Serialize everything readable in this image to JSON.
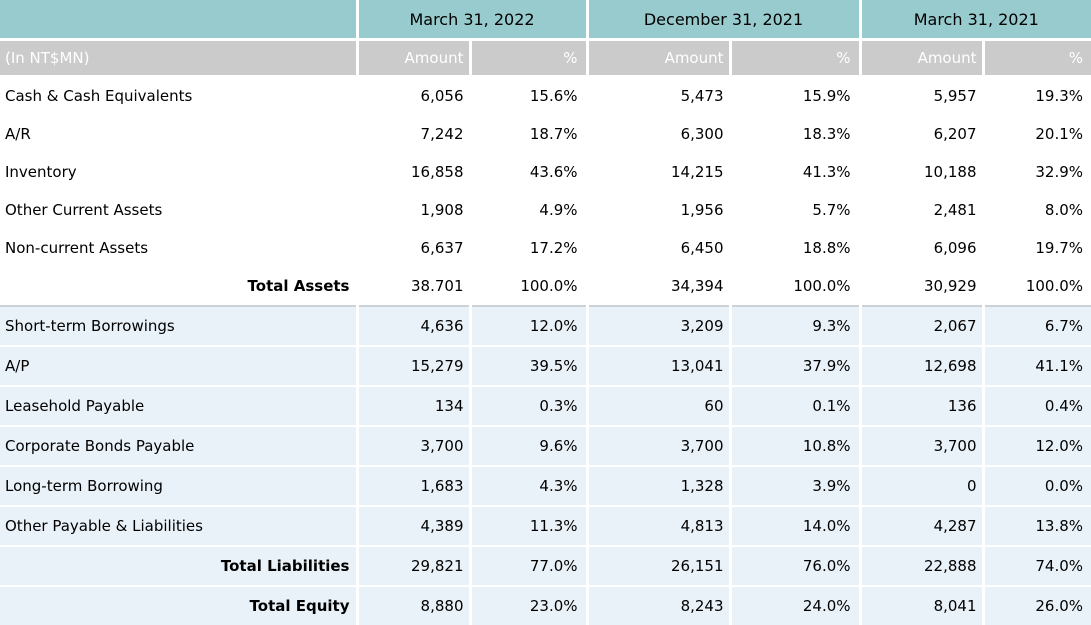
{
  "colors": {
    "header_teal": "#97cbcd",
    "header_gray": "#cbcbcb",
    "row_blue": "#eaf2f9",
    "row_white": "#ffffff",
    "text_black": "#000000",
    "text_white": "#ffffff"
  },
  "chart_data": {
    "type": "table",
    "unit_label": "(In NT$MN)",
    "column_groups": [
      "March 31, 2022",
      "December 31, 2021",
      "March 31, 2021"
    ],
    "sub_columns": [
      "Amount",
      "%"
    ],
    "rows": [
      {
        "label": "Cash & Cash Equivalents",
        "bold": false,
        "section": "assets",
        "cells": [
          "6,056",
          "15.6%",
          "5,473",
          "15.9%",
          "5,957",
          "19.3%"
        ]
      },
      {
        "label": "A/R",
        "bold": false,
        "section": "assets",
        "cells": [
          "7,242",
          "18.7%",
          "6,300",
          "18.3%",
          "6,207",
          "20.1%"
        ]
      },
      {
        "label": "Inventory",
        "bold": false,
        "section": "assets",
        "cells": [
          "16,858",
          "43.6%",
          "14,215",
          "41.3%",
          "10,188",
          "32.9%"
        ]
      },
      {
        "label": "Other Current Assets",
        "bold": false,
        "section": "assets",
        "cells": [
          "1,908",
          "4.9%",
          "1,956",
          "5.7%",
          "2,481",
          "8.0%"
        ]
      },
      {
        "label": "Non-current Assets",
        "bold": false,
        "section": "assets",
        "cells": [
          "6,637",
          "17.2%",
          "6,450",
          "18.8%",
          "6,096",
          "19.7%"
        ]
      },
      {
        "label": "Total Assets",
        "bold": true,
        "section": "assets",
        "cells": [
          "38.701",
          "100.0%",
          "34,394",
          "100.0%",
          "30,929",
          "100.0%"
        ]
      },
      {
        "label": "Short-term Borrowings",
        "bold": false,
        "section": "liabilities",
        "cells": [
          "4,636",
          "12.0%",
          "3,209",
          "9.3%",
          "2,067",
          "6.7%"
        ]
      },
      {
        "label": "A/P",
        "bold": false,
        "section": "liabilities",
        "cells": [
          "15,279",
          "39.5%",
          "13,041",
          "37.9%",
          "12,698",
          "41.1%"
        ]
      },
      {
        "label": "Leasehold Payable",
        "bold": false,
        "section": "liabilities",
        "cells": [
          "134",
          "0.3%",
          "60",
          "0.1%",
          "136",
          "0.4%"
        ]
      },
      {
        "label": "Corporate Bonds Payable",
        "bold": false,
        "section": "liabilities",
        "cells": [
          "3,700",
          "9.6%",
          "3,700",
          "10.8%",
          "3,700",
          "12.0%"
        ]
      },
      {
        "label": "Long-term Borrowing",
        "bold": false,
        "section": "liabilities",
        "cells": [
          "1,683",
          "4.3%",
          "1,328",
          "3.9%",
          "0",
          "0.0%"
        ]
      },
      {
        "label": "Other Payable & Liabilities",
        "bold": false,
        "section": "liabilities",
        "cells": [
          "4,389",
          "11.3%",
          "4,813",
          "14.0%",
          "4,287",
          "13.8%"
        ]
      },
      {
        "label": "Total Liabilities",
        "bold": true,
        "section": "liabilities",
        "cells": [
          "29,821",
          "77.0%",
          "26,151",
          "76.0%",
          "22,888",
          "74.0%"
        ]
      },
      {
        "label": "Total Equity",
        "bold": true,
        "section": "liabilities",
        "cells": [
          "8,880",
          "23.0%",
          "8,243",
          "24.0%",
          "8,041",
          "26.0%"
        ]
      }
    ]
  }
}
